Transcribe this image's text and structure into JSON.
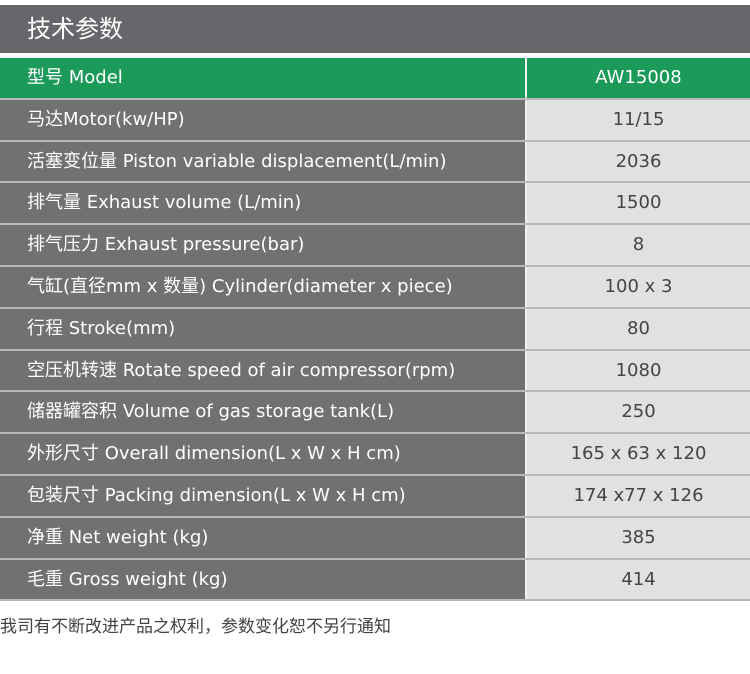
{
  "title": "技术参数",
  "header": {
    "label": "型号 Model",
    "value": "AW15008"
  },
  "rows": [
    {
      "label": "马达Motor(kw/HP)",
      "value": "11/15"
    },
    {
      "label": "活塞变位量 Piston variable displacement(L/min)",
      "value": "2036"
    },
    {
      "label": "排气量 Exhaust volume (L/min)",
      "value": "1500"
    },
    {
      "label": "排气压力 Exhaust pressure(bar)",
      "value": "8"
    },
    {
      "label": "气缸(直径mm x 数量) Cylinder(diameter x piece)",
      "value": "100 x 3"
    },
    {
      "label": "行程 Stroke(mm)",
      "value": "80"
    },
    {
      "label": "空压机转速 Rotate speed of air compressor(rpm)",
      "value": "1080"
    },
    {
      "label": "储器罐容积 Volume of gas storage tank(L)",
      "value": "250"
    },
    {
      "label": "外形尺寸 Overall dimension(L x W x H cm)",
      "value": "165 x 63 x 120"
    },
    {
      "label": "包装尺寸 Packing dimension(L x W x H cm)",
      "value": "174 x77 x 126"
    },
    {
      "label": "净重 Net weight (kg)",
      "value": "385"
    },
    {
      "label": "毛重 Gross weight (kg)",
      "value": "414"
    }
  ],
  "footer": "我司有不断改进产品之权利，参数变化恕不另行通知",
  "colors": {
    "title_bg": "#67666b",
    "header_bg": "#1b9a5a",
    "label_bg": "#717171",
    "value_bg": "#e1e1e1"
  }
}
